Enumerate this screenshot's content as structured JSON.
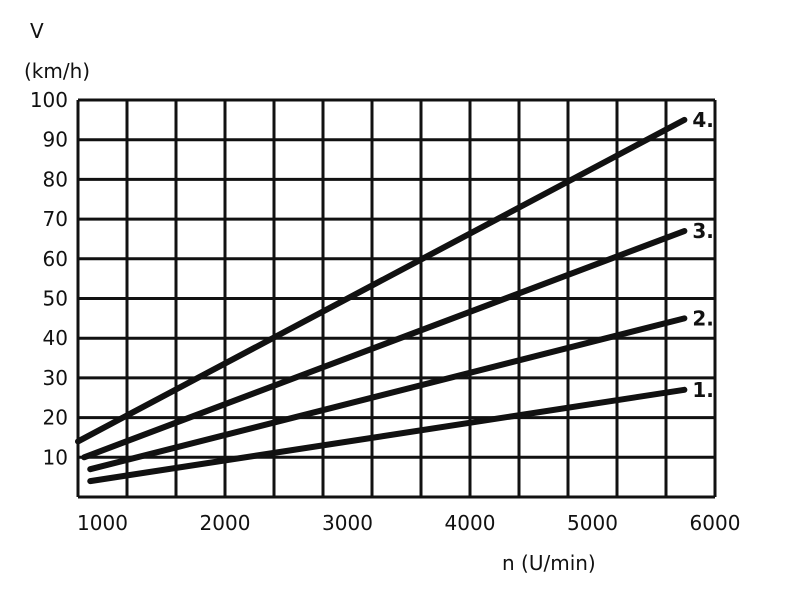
{
  "chart_data": {
    "type": "line",
    "ylabel_symbol": "V",
    "ylabel_unit": "(km/h)",
    "xlabel": "n (U/min)",
    "xlim": [
      800,
      6000
    ],
    "ylim": [
      0,
      100
    ],
    "x_ticks": [
      1000,
      2000,
      3000,
      4000,
      5000,
      6000
    ],
    "x_tick_labels": [
      "1000",
      "2000",
      "3000",
      "4000",
      "5000",
      "6000"
    ],
    "y_ticks": [
      10,
      20,
      30,
      40,
      50,
      60,
      70,
      80,
      90,
      100
    ],
    "y_tick_labels": [
      "10",
      "20",
      "30",
      "40",
      "50",
      "60",
      "70",
      "80",
      "90",
      "100"
    ],
    "grid": true,
    "series": [
      {
        "name": "1.",
        "x": [
          900,
          5750
        ],
        "y": [
          4,
          27
        ]
      },
      {
        "name": "2.",
        "x": [
          900,
          5750
        ],
        "y": [
          7,
          45
        ]
      },
      {
        "name": "3.",
        "x": [
          850,
          5750
        ],
        "y": [
          10,
          67
        ]
      },
      {
        "name": "4.",
        "x": [
          800,
          5750
        ],
        "y": [
          14,
          95
        ]
      }
    ]
  }
}
